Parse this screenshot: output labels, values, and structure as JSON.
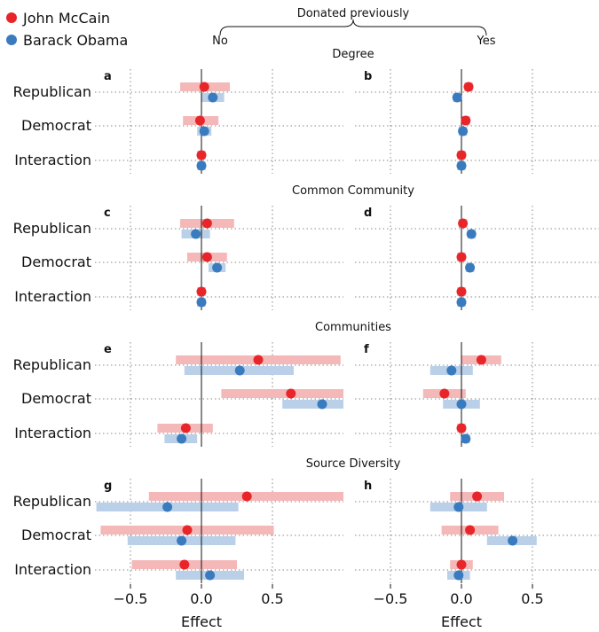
{
  "legend": [
    {
      "name": "John McCain",
      "color": "#e8262a",
      "band": "#f5b8b9"
    },
    {
      "name": "Barack Obama",
      "color": "#3a7bbf",
      "band": "#b9d0e8"
    }
  ],
  "header": {
    "title": "Donated previously",
    "left": "No",
    "right": "Yes"
  },
  "x_axis": {
    "label": "Effect",
    "ticks": [
      -0.5,
      0,
      0.5
    ],
    "tick_labels": [
      "−0.5",
      "0.0",
      "0.5"
    ],
    "xlim": [
      -0.75,
      1.0
    ]
  },
  "row_labels": [
    "Republican",
    "Democrat",
    "Interaction"
  ],
  "chart_data": {
    "type": "scatter",
    "subtype": "coefficient-plot",
    "xlabel": "Effect",
    "xlim": [
      -0.75,
      1.0
    ],
    "grid": true,
    "legend_position": "top-left",
    "series_names": [
      "John McCain",
      "Barack Obama"
    ],
    "sections": [
      {
        "title": "Degree",
        "panels": [
          {
            "letter": "a",
            "column": "No",
            "rows": [
              {
                "label": "Republican",
                "mccain": {
                  "est": 0.02,
                  "lo": -0.15,
                  "hi": 0.2
                },
                "obama": {
                  "est": 0.08,
                  "lo": 0.0,
                  "hi": 0.16
                }
              },
              {
                "label": "Democrat",
                "mccain": {
                  "est": -0.01,
                  "lo": -0.13,
                  "hi": 0.12
                },
                "obama": {
                  "est": 0.02,
                  "lo": -0.03,
                  "hi": 0.07
                }
              },
              {
                "label": "Interaction",
                "mccain": {
                  "est": 0.0,
                  "lo": -0.03,
                  "hi": 0.03
                },
                "obama": {
                  "est": 0.0,
                  "lo": -0.03,
                  "hi": 0.03
                }
              }
            ]
          },
          {
            "letter": "b",
            "column": "Yes",
            "rows": [
              {
                "label": "Republican",
                "mccain": {
                  "est": 0.05,
                  "lo": 0.02,
                  "hi": 0.08
                },
                "obama": {
                  "est": -0.03,
                  "lo": -0.06,
                  "hi": 0.0
                }
              },
              {
                "label": "Democrat",
                "mccain": {
                  "est": 0.03,
                  "lo": 0.0,
                  "hi": 0.06
                },
                "obama": {
                  "est": 0.01,
                  "lo": -0.02,
                  "hi": 0.04
                }
              },
              {
                "label": "Interaction",
                "mccain": {
                  "est": 0.0,
                  "lo": -0.03,
                  "hi": 0.03
                },
                "obama": {
                  "est": 0.0,
                  "lo": -0.03,
                  "hi": 0.03
                }
              }
            ]
          }
        ]
      },
      {
        "title": "Common Community",
        "panels": [
          {
            "letter": "c",
            "column": "No",
            "rows": [
              {
                "label": "Republican",
                "mccain": {
                  "est": 0.04,
                  "lo": -0.15,
                  "hi": 0.23
                },
                "obama": {
                  "est": -0.04,
                  "lo": -0.14,
                  "hi": 0.06
                }
              },
              {
                "label": "Democrat",
                "mccain": {
                  "est": 0.04,
                  "lo": -0.1,
                  "hi": 0.18
                },
                "obama": {
                  "est": 0.11,
                  "lo": 0.05,
                  "hi": 0.17
                }
              },
              {
                "label": "Interaction",
                "mccain": {
                  "est": 0.0,
                  "lo": -0.03,
                  "hi": 0.03
                },
                "obama": {
                  "est": 0.0,
                  "lo": -0.03,
                  "hi": 0.03
                }
              }
            ]
          },
          {
            "letter": "d",
            "column": "Yes",
            "rows": [
              {
                "label": "Republican",
                "mccain": {
                  "est": 0.01,
                  "lo": -0.02,
                  "hi": 0.04
                },
                "obama": {
                  "est": 0.07,
                  "lo": 0.04,
                  "hi": 0.1
                }
              },
              {
                "label": "Democrat",
                "mccain": {
                  "est": 0.0,
                  "lo": -0.03,
                  "hi": 0.03
                },
                "obama": {
                  "est": 0.06,
                  "lo": 0.03,
                  "hi": 0.09
                }
              },
              {
                "label": "Interaction",
                "mccain": {
                  "est": 0.0,
                  "lo": -0.03,
                  "hi": 0.03
                },
                "obama": {
                  "est": 0.0,
                  "lo": -0.03,
                  "hi": 0.03
                }
              }
            ]
          }
        ]
      },
      {
        "title": "Communities",
        "panels": [
          {
            "letter": "e",
            "column": "No",
            "rows": [
              {
                "label": "Republican",
                "mccain": {
                  "est": 0.4,
                  "lo": -0.18,
                  "hi": 0.98
                },
                "obama": {
                  "est": 0.27,
                  "lo": -0.12,
                  "hi": 0.65
                }
              },
              {
                "label": "Democrat",
                "mccain": {
                  "est": 0.63,
                  "lo": 0.14,
                  "hi": 1.0
                },
                "obama": {
                  "est": 0.85,
                  "lo": 0.57,
                  "hi": 1.0
                }
              },
              {
                "label": "Interaction",
                "mccain": {
                  "est": -0.11,
                  "lo": -0.31,
                  "hi": 0.08
                },
                "obama": {
                  "est": -0.14,
                  "lo": -0.26,
                  "hi": -0.03
                }
              }
            ]
          },
          {
            "letter": "f",
            "column": "Yes",
            "rows": [
              {
                "label": "Republican",
                "mccain": {
                  "est": 0.14,
                  "lo": 0.0,
                  "hi": 0.28
                },
                "obama": {
                  "est": -0.07,
                  "lo": -0.22,
                  "hi": 0.08
                }
              },
              {
                "label": "Democrat",
                "mccain": {
                  "est": -0.12,
                  "lo": -0.27,
                  "hi": 0.03
                },
                "obama": {
                  "est": 0.0,
                  "lo": -0.13,
                  "hi": 0.13
                }
              },
              {
                "label": "Interaction",
                "mccain": {
                  "est": 0.0,
                  "lo": -0.03,
                  "hi": 0.03
                },
                "obama": {
                  "est": 0.03,
                  "lo": 0.0,
                  "hi": 0.06
                }
              }
            ]
          }
        ]
      },
      {
        "title": "Source Diversity",
        "panels": [
          {
            "letter": "g",
            "column": "No",
            "rows": [
              {
                "label": "Republican",
                "mccain": {
                  "est": 0.32,
                  "lo": -0.37,
                  "hi": 1.0
                },
                "obama": {
                  "est": -0.24,
                  "lo": -0.74,
                  "hi": 0.26
                }
              },
              {
                "label": "Democrat",
                "mccain": {
                  "est": -0.1,
                  "lo": -0.71,
                  "hi": 0.51
                },
                "obama": {
                  "est": -0.14,
                  "lo": -0.52,
                  "hi": 0.24
                }
              },
              {
                "label": "Interaction",
                "mccain": {
                  "est": -0.12,
                  "lo": -0.49,
                  "hi": 0.25
                },
                "obama": {
                  "est": 0.06,
                  "lo": -0.18,
                  "hi": 0.3
                }
              }
            ]
          },
          {
            "letter": "h",
            "column": "Yes",
            "rows": [
              {
                "label": "Republican",
                "mccain": {
                  "est": 0.11,
                  "lo": -0.08,
                  "hi": 0.3
                },
                "obama": {
                  "est": -0.02,
                  "lo": -0.22,
                  "hi": 0.18
                }
              },
              {
                "label": "Democrat",
                "mccain": {
                  "est": 0.06,
                  "lo": -0.14,
                  "hi": 0.26
                },
                "obama": {
                  "est": 0.36,
                  "lo": 0.18,
                  "hi": 0.53
                }
              },
              {
                "label": "Interaction",
                "mccain": {
                  "est": 0.0,
                  "lo": -0.08,
                  "hi": 0.08
                },
                "obama": {
                  "est": -0.02,
                  "lo": -0.1,
                  "hi": 0.06
                }
              }
            ]
          }
        ]
      }
    ]
  }
}
